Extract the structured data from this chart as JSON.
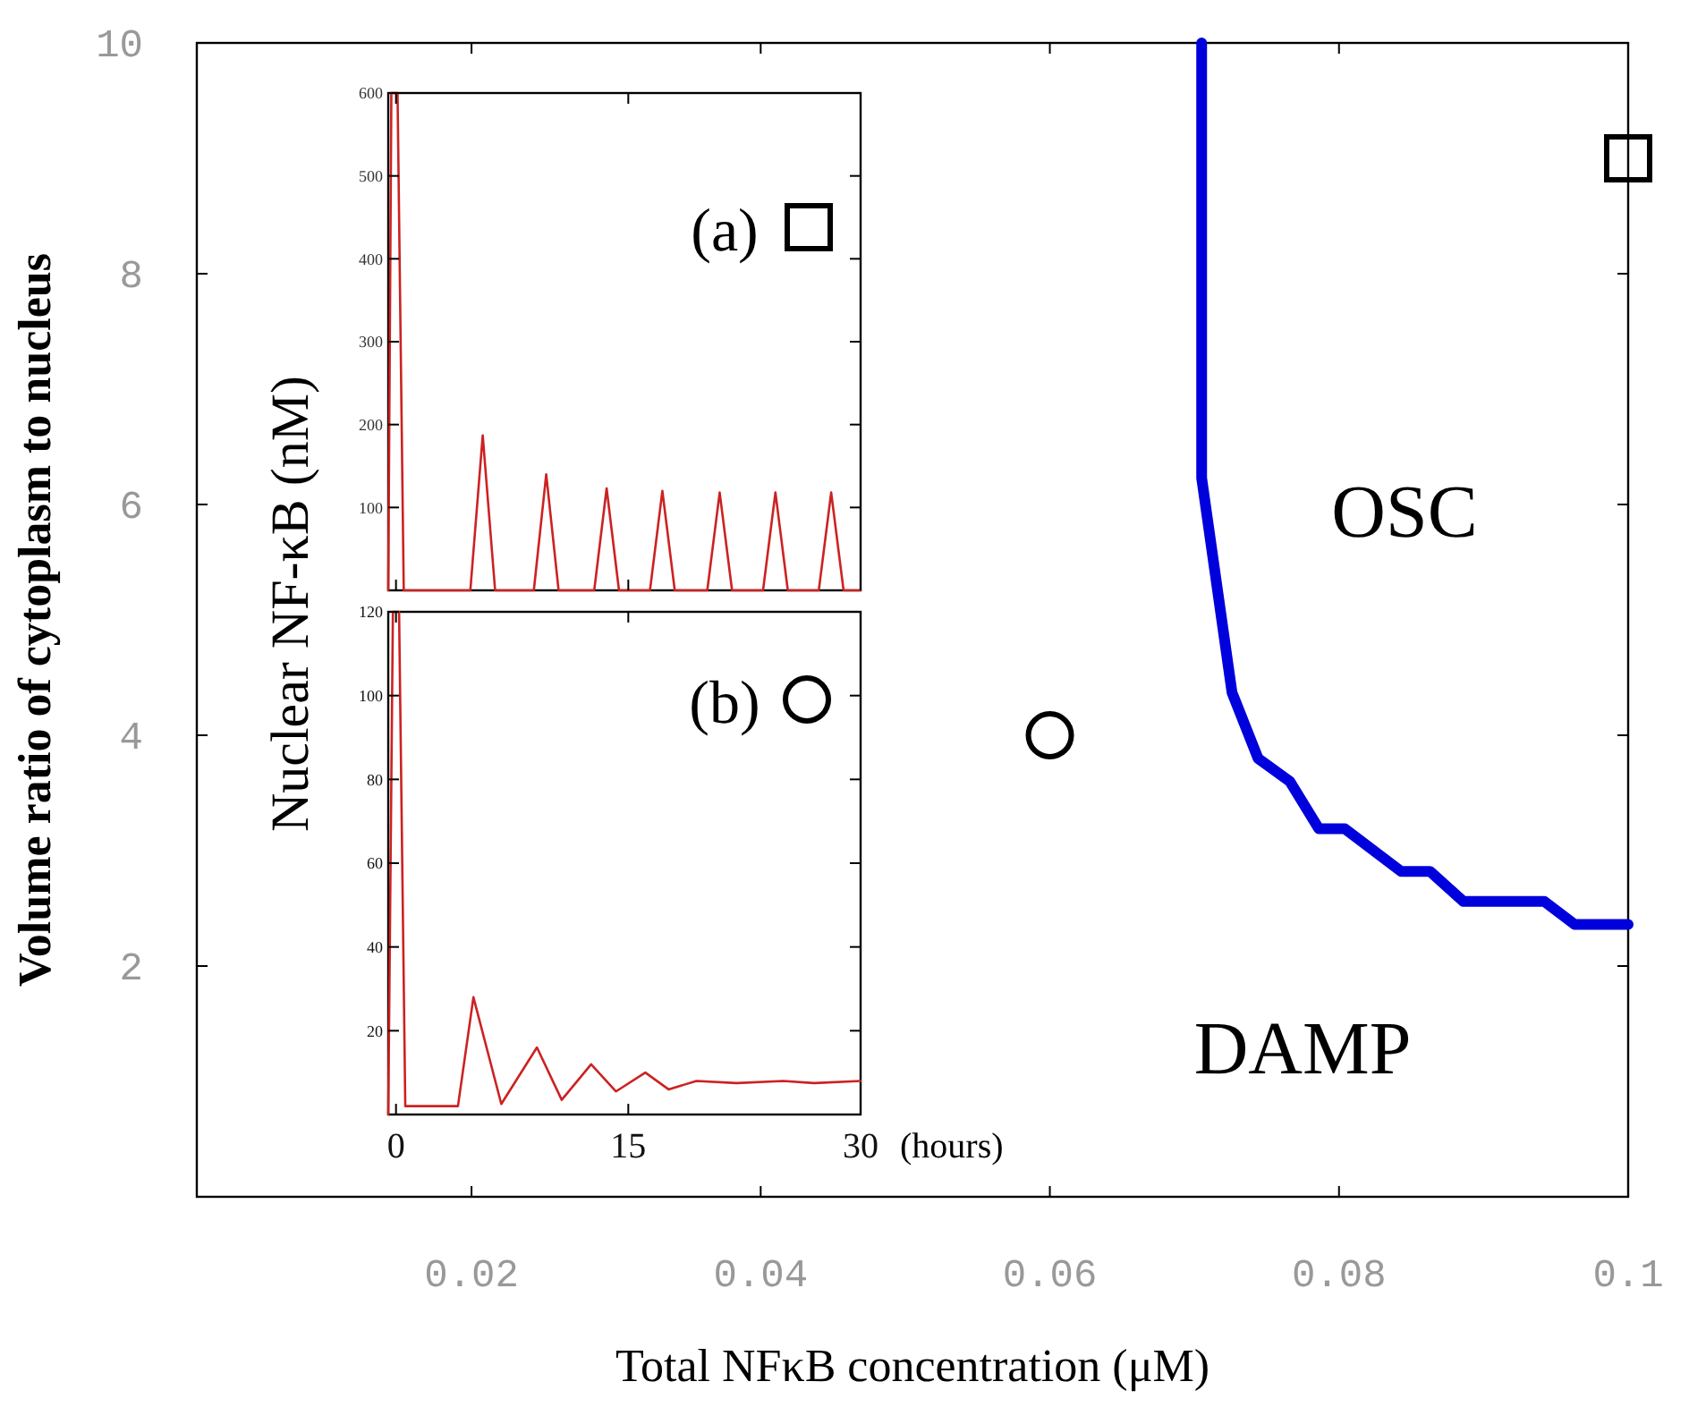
{
  "chart_data": [
    {
      "type": "line",
      "xlabel": "Total NFκB concentration (μM)",
      "ylabel": "Volume ratio of cytoplasm to nucleus",
      "xlim": [
        0.001,
        0.1
      ],
      "ylim": [
        0,
        10
      ],
      "xticks": [
        0.02,
        0.04,
        0.06,
        0.08,
        0.1
      ],
      "yticks": [
        2,
        4,
        6,
        8,
        10
      ],
      "annotations": [
        "OSC",
        "DAMP"
      ],
      "series": [
        {
          "color": "#0000dd",
          "x": [
            0.0705,
            0.0705,
            0.0726,
            0.0744,
            0.0766,
            0.0786,
            0.0804,
            0.0843,
            0.0863,
            0.0886,
            0.0942,
            0.0963,
            0.1
          ],
          "values": [
            10,
            6.23,
            4.37,
            3.8,
            3.6,
            3.19,
            3.19,
            2.82,
            2.82,
            2.56,
            2.56,
            2.36,
            2.36
          ]
        },
        {
          "type": "scatter",
          "marker": "square",
          "color": "#000000",
          "x": [
            0.1
          ],
          "values": [
            9
          ]
        },
        {
          "type": "scatter",
          "marker": "circle",
          "color": "#000000",
          "x": [
            0.06
          ],
          "values": [
            4
          ]
        }
      ]
    },
    {
      "type": "line",
      "ylabel": "Nuclear NF-κB (nM)",
      "annotations": [
        "(a)"
      ],
      "xlim": [
        -0.5,
        30
      ],
      "ylim": [
        0,
        600
      ],
      "xticks": [
        0,
        15,
        30
      ],
      "yticks": [
        100,
        200,
        300,
        400,
        500,
        600
      ],
      "tick_labels": "y",
      "series": [
        {
          "color": "#cc2222",
          "x": [
            -0.5,
            -0.3,
            0.1,
            0.5,
            4.8,
            5.6,
            6.4,
            8.9,
            9.7,
            10.5,
            12.8,
            13.6,
            14.4,
            16.4,
            17.2,
            18,
            20.1,
            20.9,
            21.7,
            23.7,
            24.5,
            25.3,
            27.3,
            28.1,
            28.9,
            30
          ],
          "values": [
            0,
            600,
            600,
            0,
            0,
            187,
            0,
            0,
            140,
            0,
            0,
            123,
            0,
            0,
            120,
            0,
            0,
            118,
            0,
            0,
            118,
            0,
            0,
            118,
            0,
            0
          ]
        }
      ]
    },
    {
      "type": "line",
      "xlabel": "(hours)",
      "annotations": [
        "(b)"
      ],
      "xlim": [
        -0.5,
        30
      ],
      "ylim": [
        0,
        120
      ],
      "xticks": [
        0,
        15,
        30
      ],
      "yticks": [
        20,
        40,
        60,
        80,
        100,
        120
      ],
      "series": [
        {
          "color": "#cc2222",
          "x": [
            -0.5,
            -0.2,
            0.2,
            0.6,
            4,
            5,
            6.8,
            9.1,
            10.7,
            12.6,
            14.2,
            16.1,
            17.6,
            19.4,
            22,
            25,
            27,
            30
          ],
          "values": [
            0,
            120,
            120,
            2,
            2,
            28,
            2.5,
            16,
            3.5,
            12,
            5.5,
            10,
            6,
            8,
            7.5,
            8,
            7.5,
            8
          ]
        }
      ]
    }
  ]
}
